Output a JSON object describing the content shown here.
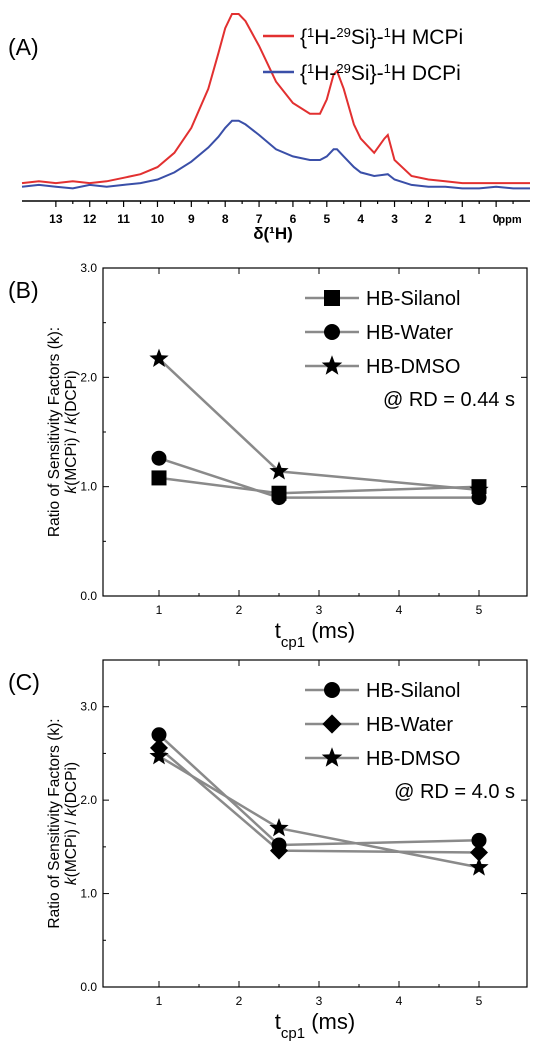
{
  "chart_data": [
    {
      "panel": "(A)",
      "type": "line",
      "xlabel": "δ(¹H)",
      "x_unit": "ppm",
      "x_reversed": true,
      "xlim": [
        14,
        -1
      ],
      "x_ticks": [
        13,
        12,
        11,
        10,
        9,
        8,
        7,
        6,
        5,
        4,
        3,
        2,
        1,
        0
      ],
      "y_axis_shown": false,
      "legend_position": "top-right",
      "series": [
        {
          "name_parts": [
            "{",
            "1",
            "H-",
            "29",
            "Si}-",
            "1",
            "H MCPi"
          ],
          "color": "#e23030",
          "points": [
            [
              14.0,
              0.05
            ],
            [
              13.5,
              0.06
            ],
            [
              13.0,
              0.05
            ],
            [
              12.5,
              0.06
            ],
            [
              12.0,
              0.05
            ],
            [
              11.5,
              0.06
            ],
            [
              11.0,
              0.08
            ],
            [
              10.5,
              0.1
            ],
            [
              10.0,
              0.14
            ],
            [
              9.5,
              0.22
            ],
            [
              9.0,
              0.36
            ],
            [
              8.5,
              0.58
            ],
            [
              8.2,
              0.78
            ],
            [
              8.0,
              0.92
            ],
            [
              7.8,
              1.0
            ],
            [
              7.6,
              1.0
            ],
            [
              7.4,
              0.96
            ],
            [
              7.0,
              0.82
            ],
            [
              6.5,
              0.62
            ],
            [
              6.0,
              0.5
            ],
            [
              5.5,
              0.44
            ],
            [
              5.2,
              0.44
            ],
            [
              5.0,
              0.52
            ],
            [
              4.8,
              0.66
            ],
            [
              4.7,
              0.68
            ],
            [
              4.5,
              0.58
            ],
            [
              4.2,
              0.38
            ],
            [
              4.0,
              0.3
            ],
            [
              3.8,
              0.26
            ],
            [
              3.6,
              0.22
            ],
            [
              3.3,
              0.3
            ],
            [
              3.2,
              0.32
            ],
            [
              3.0,
              0.18
            ],
            [
              2.5,
              0.09
            ],
            [
              2.0,
              0.07
            ],
            [
              1.5,
              0.06
            ],
            [
              1.0,
              0.05
            ],
            [
              0.5,
              0.05
            ],
            [
              0.0,
              0.05
            ],
            [
              -0.5,
              0.05
            ],
            [
              -1.0,
              0.05
            ]
          ]
        },
        {
          "name_parts": [
            "{",
            "1",
            "H-",
            "29",
            "Si}-",
            "1",
            "H DCPi"
          ],
          "color": "#3a4fa8",
          "points": [
            [
              14.0,
              0.03
            ],
            [
              13.5,
              0.04
            ],
            [
              13.0,
              0.03
            ],
            [
              12.5,
              0.02
            ],
            [
              12.0,
              0.04
            ],
            [
              11.5,
              0.03
            ],
            [
              11.0,
              0.04
            ],
            [
              10.5,
              0.05
            ],
            [
              10.0,
              0.07
            ],
            [
              9.5,
              0.11
            ],
            [
              9.0,
              0.17
            ],
            [
              8.5,
              0.25
            ],
            [
              8.2,
              0.31
            ],
            [
              8.0,
              0.36
            ],
            [
              7.8,
              0.4
            ],
            [
              7.6,
              0.4
            ],
            [
              7.4,
              0.38
            ],
            [
              7.0,
              0.32
            ],
            [
              6.5,
              0.24
            ],
            [
              6.0,
              0.2
            ],
            [
              5.5,
              0.18
            ],
            [
              5.2,
              0.18
            ],
            [
              5.0,
              0.2
            ],
            [
              4.8,
              0.24
            ],
            [
              4.7,
              0.24
            ],
            [
              4.5,
              0.2
            ],
            [
              4.2,
              0.14
            ],
            [
              4.0,
              0.11
            ],
            [
              3.6,
              0.09
            ],
            [
              3.2,
              0.1
            ],
            [
              3.0,
              0.07
            ],
            [
              2.5,
              0.04
            ],
            [
              2.0,
              0.03
            ],
            [
              1.5,
              0.03
            ],
            [
              1.0,
              0.02
            ],
            [
              0.5,
              0.02
            ],
            [
              0.0,
              0.03
            ],
            [
              -0.5,
              0.02
            ],
            [
              -1.0,
              0.02
            ]
          ]
        }
      ]
    },
    {
      "panel": "(B)",
      "type": "line",
      "ylabel_line1": "Ratio of Sensitivity Factors (k):",
      "ylabel_line2_parts": [
        "k",
        "(MCPi) / ",
        "k",
        "(DCPi)"
      ],
      "xlabel_parts": [
        "t",
        "cp1",
        " (ms)"
      ],
      "x": [
        1,
        2.5,
        5
      ],
      "xlim": [
        0.3,
        5.6
      ],
      "x_ticks": [
        1,
        2,
        3,
        4,
        5
      ],
      "ylim": [
        0.0,
        3.0
      ],
      "y_ticks": [
        "0.0",
        "1.0",
        "2.0",
        "3.0"
      ],
      "annotation": "@ RD = 0.44 s",
      "legend_position": "top-right",
      "line_color": "#8a8a8a",
      "series": [
        {
          "name": "HB-Silanol",
          "marker": "square",
          "values": [
            1.08,
            0.94,
            1.0
          ]
        },
        {
          "name": "HB-Water",
          "marker": "circle",
          "values": [
            1.26,
            0.9,
            0.9
          ]
        },
        {
          "name": "HB-DMSO",
          "marker": "star",
          "values": [
            2.17,
            1.14,
            0.97
          ]
        }
      ]
    },
    {
      "panel": "(C)",
      "type": "line",
      "ylabel_line1": "Ratio of Sensitivity Factors (k):",
      "ylabel_line2_parts": [
        "k",
        "(MCPi) / ",
        "k",
        "(DCPi)"
      ],
      "xlabel_parts": [
        "t",
        "cp1",
        " (ms)"
      ],
      "x": [
        1,
        2.5,
        5
      ],
      "xlim": [
        0.3,
        5.6
      ],
      "x_ticks": [
        1,
        2,
        3,
        4,
        5
      ],
      "ylim": [
        0.0,
        3.5
      ],
      "y_ticks": [
        "0.0",
        "1.0",
        "2.0",
        "3.0"
      ],
      "annotation": "@ RD = 4.0 s",
      "legend_position": "top-right",
      "line_color": "#8a8a8a",
      "series": [
        {
          "name": "HB-Silanol",
          "marker": "circle",
          "values": [
            2.7,
            1.52,
            1.57
          ]
        },
        {
          "name": "HB-Water",
          "marker": "diamond",
          "values": [
            2.56,
            1.46,
            1.44
          ]
        },
        {
          "name": "HB-DMSO",
          "marker": "star",
          "values": [
            2.47,
            1.7,
            1.28
          ]
        }
      ]
    }
  ]
}
